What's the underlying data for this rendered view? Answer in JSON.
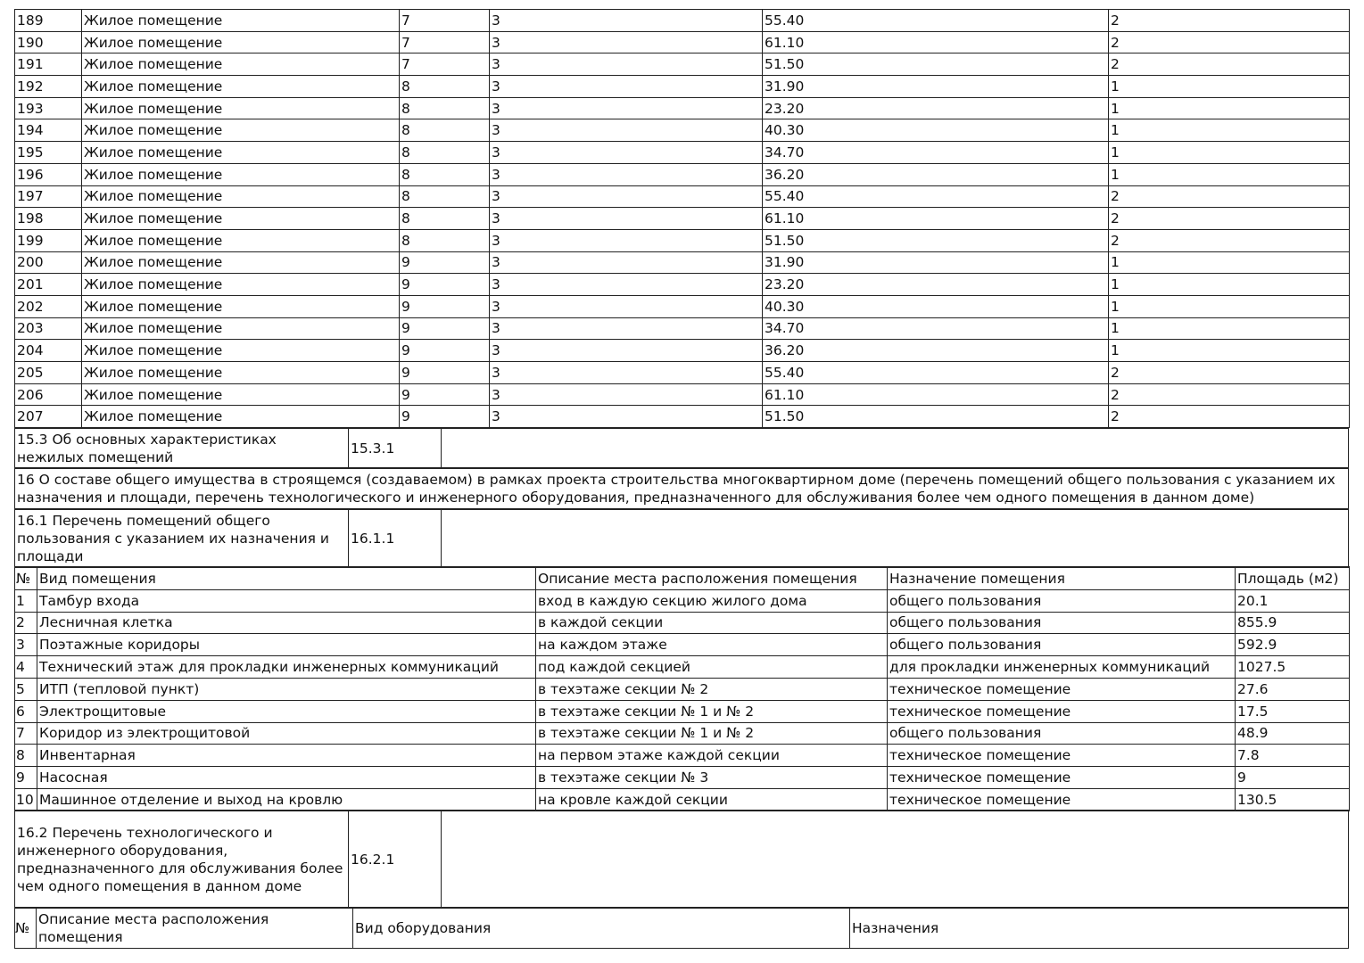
{
  "apartments": {
    "rows": [
      [
        "189",
        "Жилое помещение",
        "7",
        "3",
        "55.40",
        "2"
      ],
      [
        "190",
        "Жилое помещение",
        "7",
        "3",
        "61.10",
        "2"
      ],
      [
        "191",
        "Жилое помещение",
        "7",
        "3",
        "51.50",
        "2"
      ],
      [
        "192",
        "Жилое помещение",
        "8",
        "3",
        "31.90",
        "1"
      ],
      [
        "193",
        "Жилое помещение",
        "8",
        "3",
        "23.20",
        "1"
      ],
      [
        "194",
        "Жилое помещение",
        "8",
        "3",
        "40.30",
        "1"
      ],
      [
        "195",
        "Жилое помещение",
        "8",
        "3",
        "34.70",
        "1"
      ],
      [
        "196",
        "Жилое помещение",
        "8",
        "3",
        "36.20",
        "1"
      ],
      [
        "197",
        "Жилое помещение",
        "8",
        "3",
        "55.40",
        "2"
      ],
      [
        "198",
        "Жилое помещение",
        "8",
        "3",
        "61.10",
        "2"
      ],
      [
        "199",
        "Жилое помещение",
        "8",
        "3",
        "51.50",
        "2"
      ],
      [
        "200",
        "Жилое помещение",
        "9",
        "3",
        "31.90",
        "1"
      ],
      [
        "201",
        "Жилое помещение",
        "9",
        "3",
        "23.20",
        "1"
      ],
      [
        "202",
        "Жилое помещение",
        "9",
        "3",
        "40.30",
        "1"
      ],
      [
        "203",
        "Жилое помещение",
        "9",
        "3",
        "34.70",
        "1"
      ],
      [
        "204",
        "Жилое помещение",
        "9",
        "3",
        "36.20",
        "1"
      ],
      [
        "205",
        "Жилое помещение",
        "9",
        "3",
        "55.40",
        "2"
      ],
      [
        "206",
        "Жилое помещение",
        "9",
        "3",
        "61.10",
        "2"
      ],
      [
        "207",
        "Жилое помещение",
        "9",
        "3",
        "51.50",
        "2"
      ]
    ]
  },
  "s15_3": {
    "label": "15.3 Об основных характеристиках нежилых помещений",
    "code": "15.3.1",
    "value": ""
  },
  "s16": {
    "label": "16 О составе общего имущества в строящемся (создаваемом) в рамках проекта строительства многоквартирном доме (перечень помещений общего пользования с указанием их назначения и площади, перечень технологического и инженерного оборудования, предназначенного для обслуживания более чем одного помещения в данном доме)"
  },
  "s16_1": {
    "label": "16.1 Перечень помещений общего пользования с указанием их назначения и площади",
    "code": "16.1.1",
    "value": ""
  },
  "common_rooms": {
    "headers": [
      "№",
      "Вид помещения",
      "Описание места расположения помещения",
      "Назначение помещения",
      "Площадь (м2)"
    ],
    "rows": [
      [
        "1",
        "Тамбур входа",
        "вход в каждую секцию жилого дома",
        "общего пользования",
        "20.1"
      ],
      [
        "2",
        "Лесничная клетка",
        "в каждой секции",
        "общего пользования",
        "855.9"
      ],
      [
        "3",
        "Поэтажные коридоры",
        "на каждом этаже",
        "общего пользования",
        "592.9"
      ],
      [
        "4",
        "Технический этаж для прокладки инженерных коммуникаций",
        "под каждой секцией",
        "для прокладки инженерных коммуникаций",
        "1027.5"
      ],
      [
        "5",
        "ИТП (тепловой пункт)",
        "в техэтаже секции № 2",
        "техническое помещение",
        "27.6"
      ],
      [
        "6",
        "Электрощитовые",
        "в техэтаже секции № 1 и № 2",
        "техническое помещение",
        "17.5"
      ],
      [
        "7",
        "Коридор из электрощитовой",
        "в техэтаже секции № 1 и № 2",
        "общего пользования",
        "48.9"
      ],
      [
        "8",
        "Инвентарная",
        "на первом этаже каждой секции",
        "техническое помещение",
        "7.8"
      ],
      [
        "9",
        "Насосная",
        "в техэтаже секции № 3",
        "техническое помещение",
        "9"
      ],
      [
        "10",
        "Машинное отделение и выход на кровлю",
        "на кровле каждой секции",
        "техническое помещение",
        "130.5"
      ]
    ]
  },
  "s16_2": {
    "label": "16.2 Перечень технологического и инженерного оборудования, предназначенного для обслуживания более чем одного помещения в данном доме",
    "code": "16.2.1",
    "value": ""
  },
  "equipment": {
    "headers": [
      "№",
      "Описание места расположения помещения",
      "Вид оборудования",
      "Назначения"
    ]
  }
}
